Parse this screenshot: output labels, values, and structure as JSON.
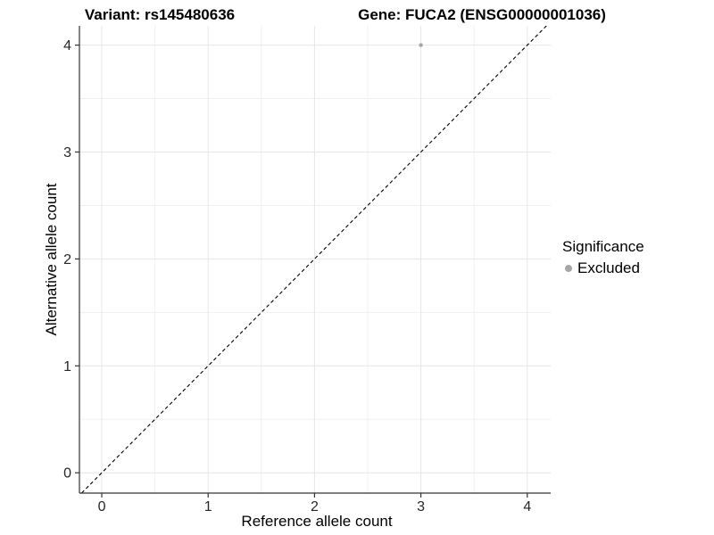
{
  "titles": {
    "left": "Variant: rs145480636",
    "right": "Gene: FUCA2 (ENSG00000001036)"
  },
  "axes": {
    "x_title": "Reference allele count",
    "y_title": "Alternative allele count"
  },
  "legend": {
    "title": "Significance",
    "items": [
      {
        "label": "Excluded",
        "marker_color": "#a6a6a6"
      }
    ]
  },
  "chart_data": {
    "type": "scatter",
    "title": "Variant: rs145480636 | Gene: FUCA2 (ENSG00000001036)",
    "xlabel": "Reference allele count",
    "ylabel": "Alternative allele count",
    "xlim": [
      -0.21,
      4.22
    ],
    "ylim": [
      -0.19,
      4.18
    ],
    "x_ticks": [
      0,
      1,
      2,
      3,
      4
    ],
    "y_ticks": [
      0,
      1,
      2,
      3,
      4
    ],
    "minor_grid_step": 0.5,
    "grid": true,
    "legend_position": "right",
    "series": [
      {
        "name": "Excluded",
        "color": "#a6a6a6",
        "points": [
          {
            "x": 3,
            "y": 4
          }
        ]
      }
    ],
    "reference_line": {
      "kind": "identity",
      "slope": 1,
      "intercept": 0,
      "style": "dashed",
      "color": "#000000"
    }
  },
  "style": {
    "background": "#ffffff",
    "axis_line_color": "#333333",
    "tick_color": "#333333",
    "tick_label_color": "#262626",
    "major_grid_color": "#e6e6e6",
    "minor_grid_color": "#f0f0f0",
    "point_radius": 2.2,
    "dash_pattern": "4 3"
  }
}
